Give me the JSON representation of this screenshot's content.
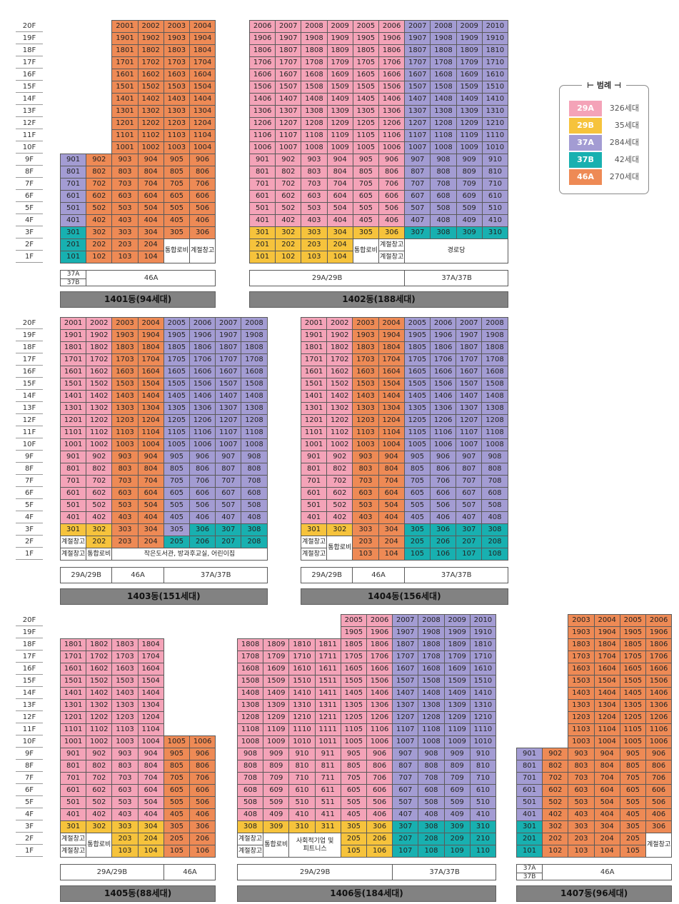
{
  "legend": {
    "title": "범례",
    "items": [
      {
        "type": "29A",
        "count": "326세대",
        "color": "#f4a3b8"
      },
      {
        "type": "29B",
        "count": "35세대",
        "color": "#f6c33c"
      },
      {
        "type": "37A",
        "count": "284세대",
        "color": "#a39cd3"
      },
      {
        "type": "37B",
        "count": "42세대",
        "color": "#18b0b0"
      },
      {
        "type": "46A",
        "count": "270세대",
        "color": "#ee8a55"
      }
    ]
  },
  "floor_labels": [
    "20F",
    "19F",
    "18F",
    "17F",
    "16F",
    "15F",
    "14F",
    "13F",
    "12F",
    "11F",
    "10F",
    "9F",
    "8F",
    "7F",
    "6F",
    "5F",
    "4F",
    "3F",
    "2F",
    "1F"
  ],
  "buildings": [
    {
      "name": "1401동(94세대)",
      "columns": [
        {
          "ranges": [
            [
              4,
              9,
              "37A"
            ],
            [
              3,
              3,
              "37B"
            ],
            [
              1,
              2,
              "37B"
            ]
          ]
        },
        {
          "ranges": [
            [
              4,
              9,
              "46A"
            ],
            [
              3,
              3,
              "46A"
            ],
            [
              2,
              2,
              "46A"
            ],
            [
              1,
              1,
              "46A"
            ]
          ]
        },
        {
          "ranges": [
            [
              1,
              20,
              "46A"
            ]
          ]
        },
        {
          "ranges": [
            [
              1,
              20,
              "46A"
            ]
          ]
        },
        {
          "ranges": [
            [
              3,
              20,
              "46A"
            ]
          ]
        },
        {
          "ranges": [
            [
              3,
              20,
              "46A"
            ]
          ]
        }
      ],
      "overrides": [
        {
          "col": 0,
          "floor": 3,
          "type": "37B"
        }
      ],
      "facilities": [
        {
          "col": 4,
          "span": 1,
          "floor": 1,
          "rows": 2,
          "label": "통합로비"
        },
        {
          "col": 5,
          "span": 1,
          "floor": 1,
          "rows": 2,
          "label": "계절창고"
        }
      ],
      "typebar": [
        {
          "span": 1,
          "label": "37A",
          "label2": "37B"
        },
        {
          "span": 5,
          "label": "46A"
        }
      ]
    },
    {
      "name": "1402동(188세대)",
      "columns": [
        {
          "ranges": [
            [
              4,
              20,
              "29A"
            ],
            [
              1,
              3,
              "29B"
            ]
          ]
        },
        {
          "ranges": [
            [
              4,
              20,
              "29A"
            ],
            [
              1,
              3,
              "29B"
            ]
          ]
        },
        {
          "ranges": [
            [
              4,
              20,
              "29A"
            ],
            [
              1,
              3,
              "29B"
            ]
          ]
        },
        {
          "ranges": [
            [
              4,
              20,
              "29A"
            ],
            [
              1,
              3,
              "29B"
            ]
          ]
        },
        {
          "ranges": [
            [
              4,
              20,
              "29A"
            ],
            [
              3,
              3,
              "29B"
            ]
          ]
        },
        {
          "ranges": [
            [
              4,
              20,
              "29A"
            ],
            [
              3,
              3,
              "29B"
            ]
          ]
        },
        {
          "ranges": [
            [
              4,
              20,
              "37A"
            ],
            [
              3,
              3,
              "37B"
            ]
          ]
        },
        {
          "ranges": [
            [
              4,
              20,
              "37A"
            ],
            [
              3,
              3,
              "37B"
            ]
          ]
        },
        {
          "ranges": [
            [
              4,
              20,
              "37A"
            ],
            [
              3,
              3,
              "37B"
            ]
          ]
        },
        {
          "ranges": [
            [
              4,
              20,
              "37A"
            ],
            [
              3,
              3,
              "37B"
            ]
          ]
        }
      ],
      "facilities": [
        {
          "col": 4,
          "span": 1,
          "floor": 1,
          "rows": 2,
          "label": "통합로비"
        },
        {
          "col": 5,
          "span": 1,
          "floor": 2,
          "rows": 1,
          "label": "계절창고"
        },
        {
          "col": 5,
          "span": 1,
          "floor": 1,
          "rows": 1,
          "label": "계절창고"
        },
        {
          "col": 6,
          "span": 4,
          "floor": 1,
          "rows": 2,
          "label": "경로당"
        }
      ],
      "typebar": [
        {
          "span": 6,
          "label": "29A/29B"
        },
        {
          "span": 4,
          "label": "37A/37B"
        }
      ]
    },
    {
      "name": "1403동(151세대)",
      "columns": [
        {
          "ranges": [
            [
              4,
              20,
              "29A"
            ],
            [
              3,
              3,
              "29B"
            ]
          ]
        },
        {
          "ranges": [
            [
              4,
              20,
              "29A"
            ],
            [
              2,
              3,
              "29B"
            ]
          ]
        },
        {
          "ranges": [
            [
              2,
              20,
              "46A"
            ]
          ]
        },
        {
          "ranges": [
            [
              2,
              20,
              "46A"
            ]
          ]
        },
        {
          "ranges": [
            [
              3,
              20,
              "37A"
            ],
            [
              2,
              2,
              "37B"
            ]
          ]
        },
        {
          "ranges": [
            [
              4,
              20,
              "37A"
            ],
            [
              2,
              3,
              "37B"
            ]
          ]
        },
        {
          "ranges": [
            [
              4,
              20,
              "37A"
            ],
            [
              2,
              3,
              "37B"
            ]
          ]
        },
        {
          "ranges": [
            [
              4,
              20,
              "37A"
            ],
            [
              2,
              3,
              "37B"
            ]
          ]
        }
      ],
      "facilities": [
        {
          "col": 0,
          "span": 1,
          "floor": 2,
          "rows": 1,
          "label": "계절창고"
        },
        {
          "col": 0,
          "span": 1,
          "floor": 1,
          "rows": 1,
          "label": "계절창고"
        },
        {
          "col": 1,
          "span": 1,
          "floor": 1,
          "rows": 1,
          "label": "통합로비"
        },
        {
          "col": 2,
          "span": 6,
          "floor": 1,
          "rows": 1,
          "label": "작은도서관, 방과후교실, 어린이집"
        }
      ],
      "typebar": [
        {
          "span": 2,
          "label": "29A/29B"
        },
        {
          "span": 2,
          "label": "46A"
        },
        {
          "span": 4,
          "label": "37A/37B"
        }
      ]
    },
    {
      "name": "1404동(156세대)",
      "columns": [
        {
          "ranges": [
            [
              4,
              20,
              "29A"
            ],
            [
              3,
              3,
              "29B"
            ]
          ]
        },
        {
          "ranges": [
            [
              4,
              20,
              "29A"
            ],
            [
              3,
              3,
              "29B"
            ]
          ]
        },
        {
          "ranges": [
            [
              1,
              20,
              "46A"
            ]
          ]
        },
        {
          "ranges": [
            [
              1,
              20,
              "46A"
            ]
          ]
        },
        {
          "ranges": [
            [
              4,
              20,
              "37A"
            ],
            [
              1,
              3,
              "37B"
            ]
          ]
        },
        {
          "ranges": [
            [
              4,
              20,
              "37A"
            ],
            [
              1,
              3,
              "37B"
            ]
          ]
        },
        {
          "ranges": [
            [
              4,
              20,
              "37A"
            ],
            [
              1,
              3,
              "37B"
            ]
          ]
        },
        {
          "ranges": [
            [
              4,
              20,
              "37A"
            ],
            [
              1,
              3,
              "37B"
            ]
          ]
        }
      ],
      "facilities": [
        {
          "col": 0,
          "span": 1,
          "floor": 2,
          "rows": 1,
          "label": "계절창고"
        },
        {
          "col": 0,
          "span": 1,
          "floor": 1,
          "rows": 1,
          "label": "계절창고"
        },
        {
          "col": 1,
          "span": 1,
          "floor": 1,
          "rows": 2,
          "label": "통합로비"
        }
      ],
      "typebar": [
        {
          "span": 2,
          "label": "29A/29B"
        },
        {
          "span": 2,
          "label": "46A"
        },
        {
          "span": 4,
          "label": "37A/37B"
        }
      ]
    },
    {
      "name": "1405동(88세대)",
      "columns": [
        {
          "ranges": [
            [
              4,
              18,
              "29A"
            ],
            [
              3,
              3,
              "29B"
            ]
          ]
        },
        {
          "ranges": [
            [
              4,
              18,
              "29A"
            ],
            [
              3,
              3,
              "29B"
            ]
          ]
        },
        {
          "ranges": [
            [
              4,
              18,
              "29A"
            ],
            [
              1,
              3,
              "29B"
            ]
          ]
        },
        {
          "ranges": [
            [
              4,
              18,
              "29A"
            ],
            [
              1,
              3,
              "29B"
            ]
          ]
        },
        {
          "ranges": [
            [
              1,
              10,
              "46A"
            ]
          ]
        },
        {
          "ranges": [
            [
              1,
              10,
              "46A"
            ]
          ]
        }
      ],
      "facilities": [
        {
          "col": 0,
          "span": 1,
          "floor": 2,
          "rows": 1,
          "label": "계절창고"
        },
        {
          "col": 0,
          "span": 1,
          "floor": 1,
          "rows": 1,
          "label": "계절창고"
        },
        {
          "col": 1,
          "span": 1,
          "floor": 1,
          "rows": 2,
          "label": "통합로비"
        }
      ],
      "typebar": [
        {
          "span": 4,
          "label": "29A/29B"
        },
        {
          "span": 2,
          "label": "46A"
        }
      ]
    },
    {
      "name": "1406동(184세대)",
      "columns": [
        {
          "ranges": [
            [
              4,
              18,
              "29A"
            ],
            [
              3,
              3,
              "29B"
            ]
          ]
        },
        {
          "ranges": [
            [
              4,
              18,
              "29A"
            ],
            [
              3,
              3,
              "29B"
            ]
          ]
        },
        {
          "ranges": [
            [
              4,
              18,
              "29A"
            ],
            [
              3,
              3,
              "29B"
            ]
          ]
        },
        {
          "ranges": [
            [
              4,
              18,
              "29A"
            ],
            [
              3,
              3,
              "29B"
            ]
          ]
        },
        {
          "ranges": [
            [
              4,
              20,
              "29A"
            ],
            [
              1,
              3,
              "29B"
            ]
          ]
        },
        {
          "ranges": [
            [
              4,
              20,
              "29A"
            ],
            [
              1,
              3,
              "29B"
            ]
          ]
        },
        {
          "ranges": [
            [
              4,
              20,
              "37A"
            ],
            [
              1,
              3,
              "37B"
            ]
          ]
        },
        {
          "ranges": [
            [
              4,
              20,
              "37A"
            ],
            [
              1,
              3,
              "37B"
            ]
          ]
        },
        {
          "ranges": [
            [
              4,
              20,
              "37A"
            ],
            [
              1,
              3,
              "37B"
            ]
          ]
        },
        {
          "ranges": [
            [
              4,
              20,
              "37A"
            ],
            [
              1,
              3,
              "37B"
            ]
          ]
        }
      ],
      "facilities": [
        {
          "col": 0,
          "span": 1,
          "floor": 2,
          "rows": 1,
          "label": "계절창고"
        },
        {
          "col": 0,
          "span": 1,
          "floor": 1,
          "rows": 1,
          "label": "계절창고"
        },
        {
          "col": 1,
          "span": 1,
          "floor": 1,
          "rows": 2,
          "label": "통합로비"
        },
        {
          "col": 2,
          "span": 2,
          "floor": 1,
          "rows": 2,
          "label": "사회적기업 및",
          "label2": "피트니스"
        }
      ],
      "typebar": [
        {
          "span": 6,
          "label": "29A/29B"
        },
        {
          "span": 4,
          "label": "37A/37B"
        }
      ]
    },
    {
      "name": "1407동(96세대)",
      "columns": [
        {
          "ranges": [
            [
              4,
              9,
              "37A"
            ],
            [
              1,
              3,
              "37B"
            ]
          ]
        },
        {
          "ranges": [
            [
              1,
              9,
              "46A"
            ]
          ]
        },
        {
          "ranges": [
            [
              1,
              20,
              "46A"
            ]
          ]
        },
        {
          "ranges": [
            [
              1,
              20,
              "46A"
            ]
          ]
        },
        {
          "ranges": [
            [
              1,
              20,
              "46A"
            ]
          ]
        },
        {
          "ranges": [
            [
              3,
              20,
              "46A"
            ]
          ]
        }
      ],
      "facilities": [
        {
          "col": 5,
          "span": 1,
          "floor": 1,
          "rows": 2,
          "label": "계절창고"
        }
      ],
      "typebar": [
        {
          "span": 1,
          "label": "37A",
          "label2": "37B"
        },
        {
          "span": 5,
          "label": "46A"
        }
      ]
    }
  ]
}
